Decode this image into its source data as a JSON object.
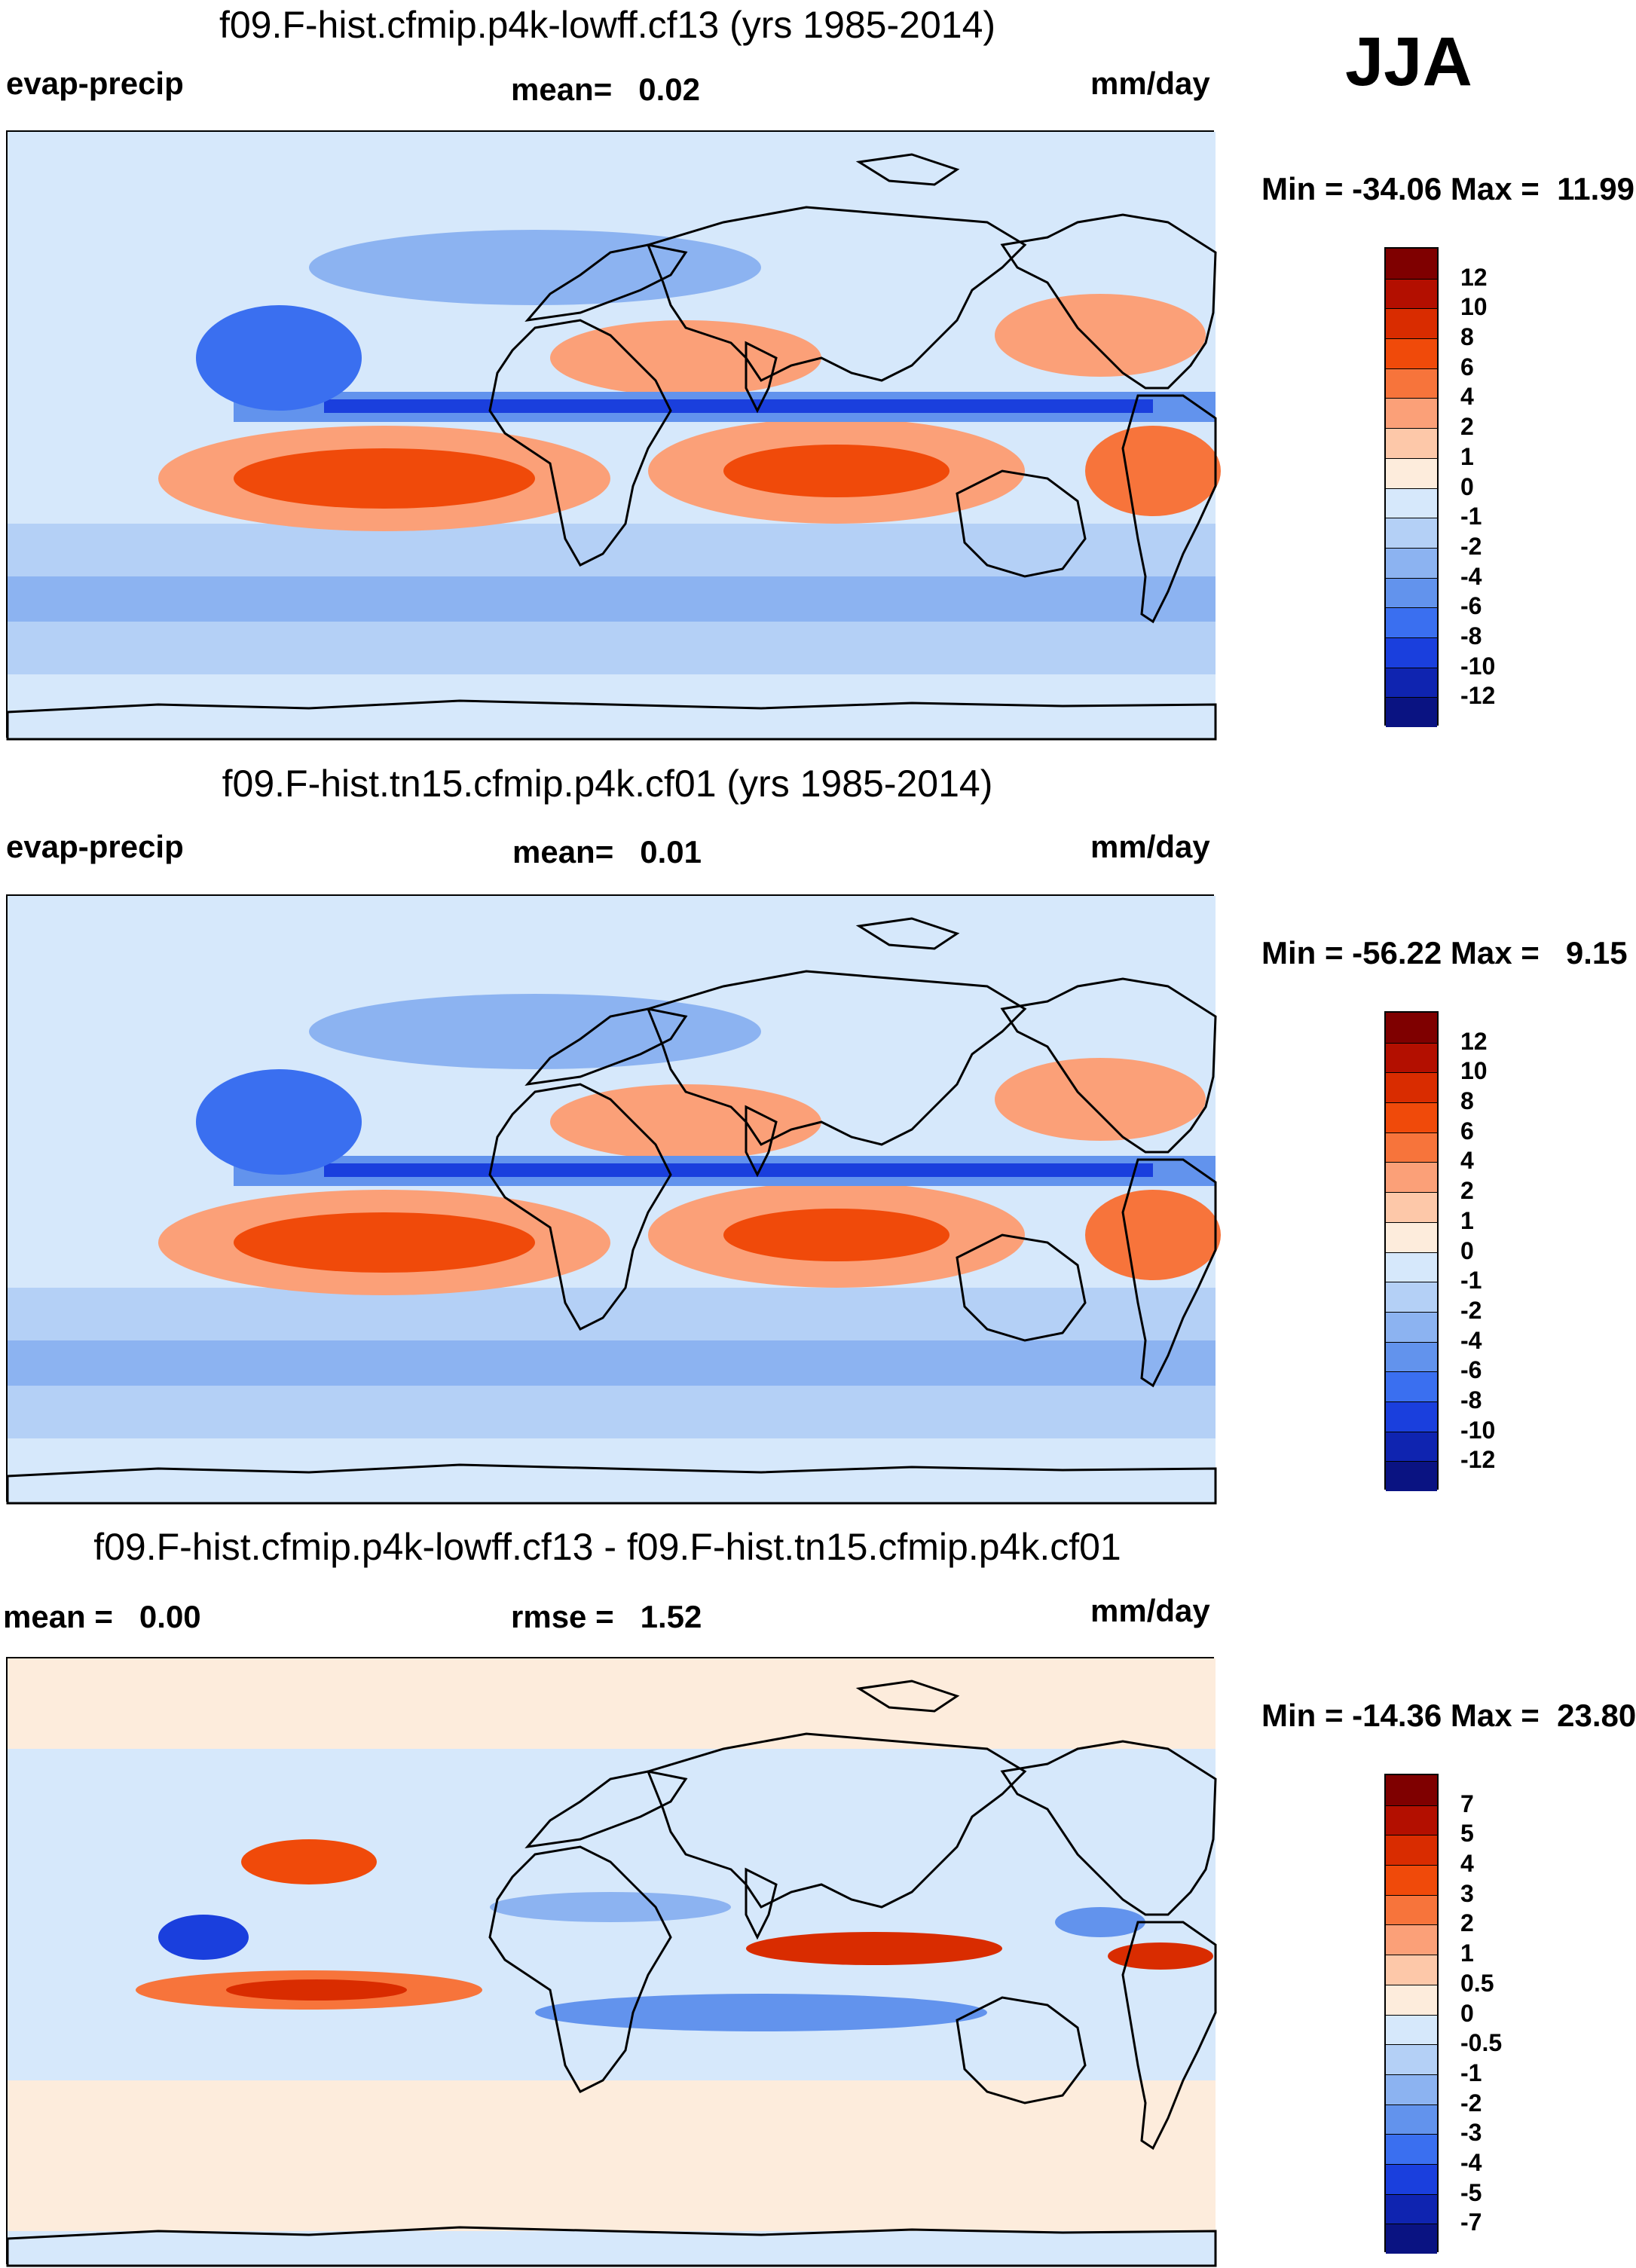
{
  "season": "JJA",
  "panels": [
    {
      "title": "f09.F-hist.cfmip.p4k-lowff.cf13 (yrs 1985-2014)",
      "left_label": "evap-precip",
      "center_label": "mean=   0.02",
      "units": "mm/day",
      "minmax": "Min = -34.06 Max =  11.99",
      "colorbar": {
        "labels": [
          "12",
          "10",
          "8",
          "6",
          "4",
          "2",
          "1",
          "0",
          "-1",
          "-2",
          "-4",
          "-6",
          "-8",
          "-10",
          "-12"
        ],
        "colors": [
          "#7f0000",
          "#b30f00",
          "#d92c00",
          "#f04a0a",
          "#f7743b",
          "#fba078",
          "#fdc8a9",
          "#fdecdc",
          "#d6e8fb",
          "#b4d0f6",
          "#8cb3f1",
          "#6293ed",
          "#3a6ff0",
          "#1a3fdd",
          "#0f24b0",
          "#0a1382"
        ]
      },
      "map_style": "control"
    },
    {
      "title": "f09.F-hist.tn15.cfmip.p4k.cf01 (yrs 1985-2014)",
      "left_label": "evap-precip",
      "center_label": "mean=   0.01",
      "units": "mm/day",
      "minmax": "Min = -56.22 Max =   9.15",
      "colorbar": {
        "labels": [
          "12",
          "10",
          "8",
          "6",
          "4",
          "2",
          "1",
          "0",
          "-1",
          "-2",
          "-4",
          "-6",
          "-8",
          "-10",
          "-12"
        ],
        "colors": [
          "#7f0000",
          "#b30f00",
          "#d92c00",
          "#f04a0a",
          "#f7743b",
          "#fba078",
          "#fdc8a9",
          "#fdecdc",
          "#d6e8fb",
          "#b4d0f6",
          "#8cb3f1",
          "#6293ed",
          "#3a6ff0",
          "#1a3fdd",
          "#0f24b0",
          "#0a1382"
        ]
      },
      "map_style": "control"
    },
    {
      "title": "f09.F-hist.cfmip.p4k-lowff.cf13 - f09.F-hist.tn15.cfmip.p4k.cf01",
      "left_label": "mean =   0.00",
      "center_label": "rmse =   1.52",
      "units": "mm/day",
      "minmax": "Min = -14.36 Max =  23.80",
      "colorbar": {
        "labels": [
          "7",
          "5",
          "4",
          "3",
          "2",
          "1",
          "0.5",
          "0",
          "-0.5",
          "-1",
          "-2",
          "-3",
          "-4",
          "-5",
          "-7"
        ],
        "colors": [
          "#7f0000",
          "#b30f00",
          "#d92c00",
          "#f04a0a",
          "#f7743b",
          "#fba078",
          "#fdc8a9",
          "#fdecdc",
          "#d6e8fb",
          "#b4d0f6",
          "#8cb3f1",
          "#6293ed",
          "#3a6ff0",
          "#1a3fdd",
          "#0f24b0",
          "#0a1382"
        ]
      },
      "map_style": "difference"
    }
  ]
}
